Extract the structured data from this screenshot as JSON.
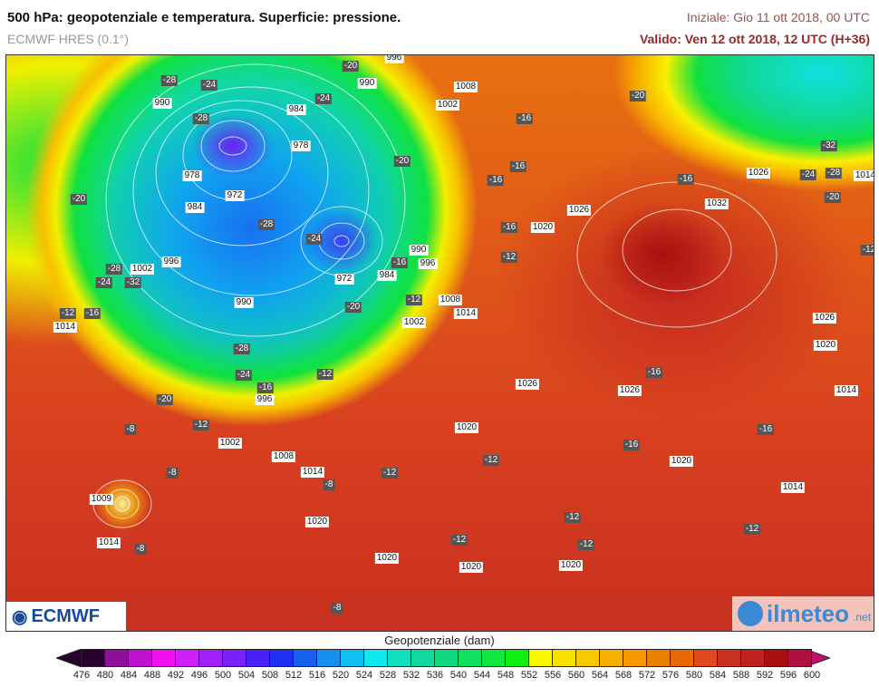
{
  "header": {
    "title": "500 hPa: geopotenziale e temperatura. Superficie: pressione.",
    "model": "ECMWF HRES (0.1°)",
    "initial": "Iniziale: Gio 11 ott 2018, 00 UTC",
    "valid": "Valido: Ven 12 ott 2018, 12 UTC (H+36)"
  },
  "map": {
    "pressure_labels": [
      "990",
      "978",
      "984",
      "972",
      "978",
      "984",
      "990",
      "996",
      "1008",
      "1002",
      "996",
      "990",
      "972",
      "984",
      "990",
      "996",
      "1008",
      "1014",
      "1002",
      "996",
      "1002",
      "1008",
      "1014",
      "1020",
      "1009",
      "1014",
      "1020",
      "1020",
      "1020",
      "1020",
      "1026",
      "1026",
      "1020",
      "1014",
      "1020",
      "1026",
      "1032",
      "1026",
      "1014",
      "1026",
      "1020",
      "1014",
      "1014",
      "1002"
    ],
    "temperature_labels": [
      "-28",
      "-24",
      "-28",
      "-20",
      "-24",
      "-20",
      "-28",
      "-24",
      "-16",
      "-12",
      "-20",
      "-28",
      "-24",
      "-16",
      "-12",
      "-20",
      "-12",
      "-8",
      "-8",
      "-8",
      "-8",
      "-20",
      "-28",
      "-24",
      "-32",
      "-12",
      "-16",
      "-16",
      "-16",
      "-12",
      "-16",
      "-16",
      "-20",
      "-32",
      "-24",
      "-28",
      "-20",
      "-12",
      "-16",
      "-16",
      "-16",
      "-12",
      "-12",
      "-12",
      "-12",
      "-12",
      "-12",
      "-8",
      "-16"
    ],
    "logo_left": "ECMWF",
    "logo_right": {
      "name": "ilmeteo",
      "tld": ".net"
    }
  },
  "colorbar": {
    "title": "Geopotenziale (dam)",
    "ticks": [
      "476",
      "480",
      "484",
      "488",
      "492",
      "496",
      "500",
      "504",
      "508",
      "512",
      "516",
      "520",
      "524",
      "528",
      "532",
      "536",
      "540",
      "544",
      "548",
      "552",
      "556",
      "560",
      "564",
      "568",
      "572",
      "576",
      "580",
      "584",
      "588",
      "592",
      "596",
      "600"
    ],
    "colors": [
      "#2a0030",
      "#8e109a",
      "#c010d0",
      "#f010f0",
      "#d020f8",
      "#a020f8",
      "#7a20f8",
      "#4a20f8",
      "#2030f0",
      "#1860f0",
      "#1890f0",
      "#10c0f0",
      "#10e8f0",
      "#10e0c0",
      "#10d8a0",
      "#10d880",
      "#10e060",
      "#10e840",
      "#10f010",
      "#f8f800",
      "#f8e000",
      "#f8c800",
      "#f8b000",
      "#f89800",
      "#e88000",
      "#e86808",
      "#e04820",
      "#c83020",
      "#c02020",
      "#a81010",
      "#b01040"
    ],
    "under_color": "#2a0030",
    "over_color": "#c01070"
  }
}
